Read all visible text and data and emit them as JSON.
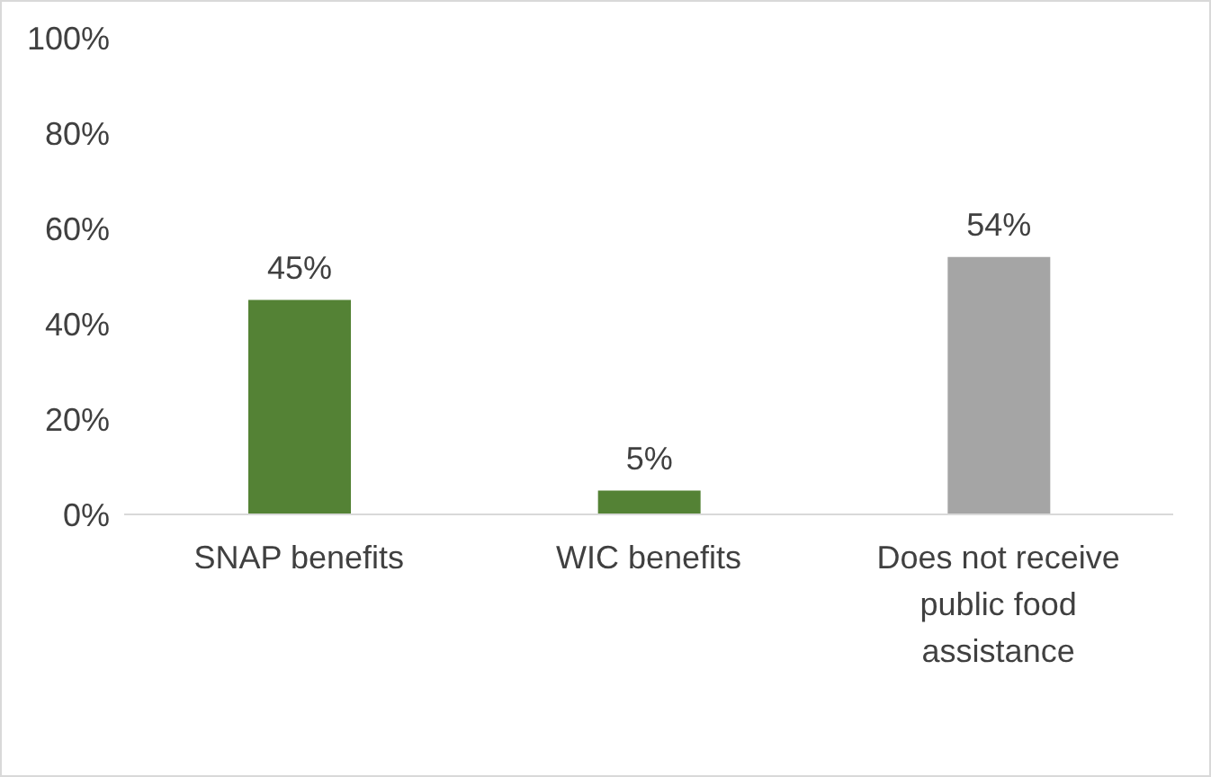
{
  "chart_data": {
    "type": "bar",
    "categories": [
      "SNAP benefits",
      "WIC benefits",
      "Does not receive public food assistance"
    ],
    "values": [
      45,
      5,
      54
    ],
    "colors": [
      "#548235",
      "#548235",
      "#a5a5a5"
    ],
    "value_labels": [
      "45%",
      "5%",
      "54%"
    ],
    "ylim": [
      0,
      100
    ],
    "yticks": [
      {
        "value": 0,
        "label": "0%"
      },
      {
        "value": 20,
        "label": "20%"
      },
      {
        "value": 40,
        "label": "40%"
      },
      {
        "value": 60,
        "label": "60%"
      },
      {
        "value": 80,
        "label": "80%"
      },
      {
        "value": 100,
        "label": "100%"
      }
    ],
    "grid": false,
    "legend": false
  }
}
